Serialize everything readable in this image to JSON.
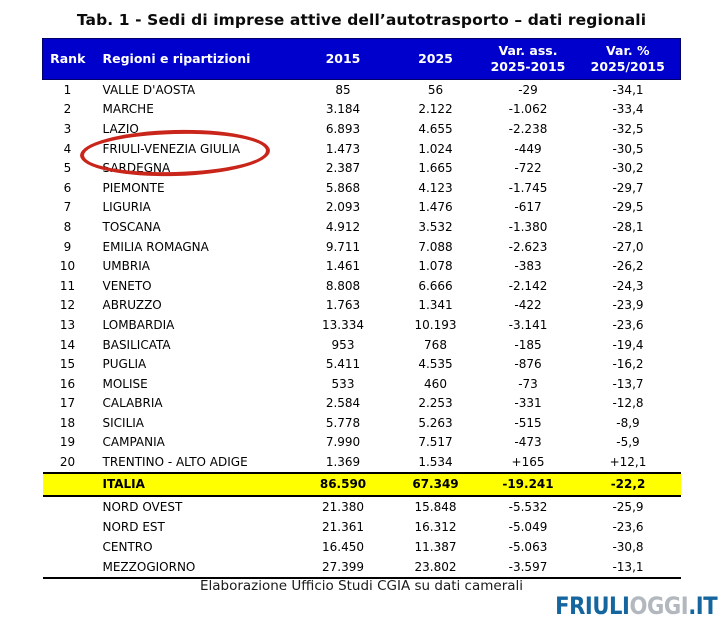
{
  "title": "Tab. 1 - Sedi di imprese attive dell’autotrasporto – dati regionali",
  "chart_data": {
    "type": "table",
    "title": "Tab. 1 - Sedi di imprese attive dell’autotrasporto – dati regionali",
    "columns": [
      "Rank",
      "Regioni e ripartizioni",
      "2015",
      "2025",
      "Var. ass. 2025-2015",
      "Var. % 2025/2015"
    ],
    "header_display": {
      "rank": "Rank",
      "region": "Regioni e ripartizioni",
      "y2015": "2015",
      "y2025": "2025",
      "var_ass": [
        "Var. ass.",
        "2025-2015"
      ],
      "var_pct": [
        "Var. %",
        "2025/2015"
      ]
    },
    "rows": [
      [
        "1",
        "VALLE D'AOSTA",
        "85",
        "56",
        "-29",
        "-34,1"
      ],
      [
        "2",
        "MARCHE",
        "3.184",
        "2.122",
        "-1.062",
        "-33,4"
      ],
      [
        "3",
        "LAZIO",
        "6.893",
        "4.655",
        "-2.238",
        "-32,5"
      ],
      [
        "4",
        "FRIULI-VENEZIA GIULIA",
        "1.473",
        "1.024",
        "-449",
        "-30,5"
      ],
      [
        "5",
        "SARDEGNA",
        "2.387",
        "1.665",
        "-722",
        "-30,2"
      ],
      [
        "6",
        "PIEMONTE",
        "5.868",
        "4.123",
        "-1.745",
        "-29,7"
      ],
      [
        "7",
        "LIGURIA",
        "2.093",
        "1.476",
        "-617",
        "-29,5"
      ],
      [
        "8",
        "TOSCANA",
        "4.912",
        "3.532",
        "-1.380",
        "-28,1"
      ],
      [
        "9",
        "EMILIA ROMAGNA",
        "9.711",
        "7.088",
        "-2.623",
        "-27,0"
      ],
      [
        "10",
        "UMBRIA",
        "1.461",
        "1.078",
        "-383",
        "-26,2"
      ],
      [
        "11",
        "VENETO",
        "8.808",
        "6.666",
        "-2.142",
        "-24,3"
      ],
      [
        "12",
        "ABRUZZO",
        "1.763",
        "1.341",
        "-422",
        "-23,9"
      ],
      [
        "13",
        "LOMBARDIA",
        "13.334",
        "10.193",
        "-3.141",
        "-23,6"
      ],
      [
        "14",
        "BASILICATA",
        "953",
        "768",
        "-185",
        "-19,4"
      ],
      [
        "15",
        "PUGLIA",
        "5.411",
        "4.535",
        "-876",
        "-16,2"
      ],
      [
        "16",
        "MOLISE",
        "533",
        "460",
        "-73",
        "-13,7"
      ],
      [
        "17",
        "CALABRIA",
        "2.584",
        "2.253",
        "-331",
        "-12,8"
      ],
      [
        "18",
        "SICILIA",
        "5.778",
        "5.263",
        "-515",
        "-8,9"
      ],
      [
        "19",
        "CAMPANIA",
        "7.990",
        "7.517",
        "-473",
        "-5,9"
      ],
      [
        "20",
        "TRENTINO - ALTO ADIGE",
        "1.369",
        "1.534",
        "+165",
        "+12,1"
      ]
    ],
    "total_row": [
      "",
      "ITALIA",
      "86.590",
      "67.349",
      "-19.241",
      "-22,2"
    ],
    "subtotal_rows": [
      [
        "",
        "NORD OVEST",
        "21.380",
        "15.848",
        "-5.532",
        "-25,9"
      ],
      [
        "",
        "NORD EST",
        "21.361",
        "16.312",
        "-5.049",
        "-23,6"
      ],
      [
        "",
        "CENTRO",
        "16.450",
        "11.387",
        "-5.063",
        "-30,8"
      ],
      [
        "",
        "MEZZOGIORNO",
        "27.399",
        "23.802",
        "-3.597",
        "-13,1"
      ]
    ],
    "annotation": {
      "shape": "red-ellipse",
      "highlighted_region": "FRIULI-VENEZIA GIULIA",
      "highlighted_rank": "4"
    }
  },
  "footer": "Elaborazione Ufficio Studi CGIA su dati camerali",
  "logo": {
    "part1": "FRIULI",
    "part2": "OGGI",
    "part3": ".IT"
  },
  "colors": {
    "header_bg": "#0000CD",
    "header_text": "#FFFFFF",
    "total_row_bg": "#FFFF00",
    "annotation_red": "#C9251A",
    "logo_blue": "#15669E",
    "logo_gray": "#B2B8BE"
  }
}
